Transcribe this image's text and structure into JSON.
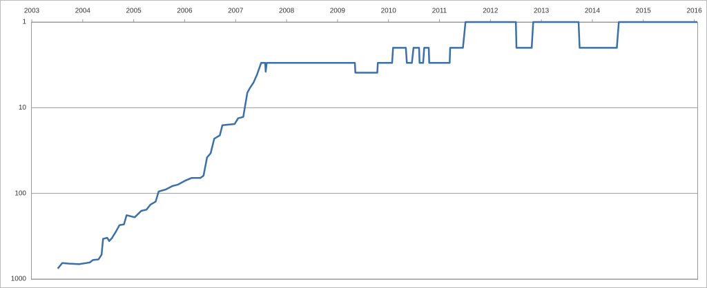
{
  "chart_data": {
    "type": "line",
    "y_scale": "log",
    "y_inverted": true,
    "grid": true,
    "xlim": [
      2003,
      2016.06
    ],
    "xticks": [
      2003,
      2004,
      2005,
      2006,
      2007,
      2008,
      2009,
      2010,
      2011,
      2012,
      2013,
      2014,
      2015,
      2016
    ],
    "ylim": [
      1,
      1000
    ],
    "yticks": [
      1,
      10,
      100,
      1000
    ],
    "x": [
      2003.51,
      2003.6,
      2003.73,
      2003.93,
      2004.14,
      2004.2,
      2004.31,
      2004.37,
      2004.4,
      2004.48,
      2004.52,
      2004.57,
      2004.65,
      2004.72,
      2004.81,
      2004.86,
      2005.02,
      2005.15,
      2005.25,
      2005.33,
      2005.43,
      2005.49,
      2005.63,
      2005.76,
      2005.87,
      2006.01,
      2006.14,
      2006.31,
      2006.37,
      2006.44,
      2006.51,
      2006.58,
      2006.69,
      2006.74,
      2006.98,
      2007.05,
      2007.15,
      2007.23,
      2007.28,
      2007.35,
      2007.42,
      2007.5,
      2007.58,
      2007.59,
      2007.61,
      2009.34,
      2009.35,
      2009.78,
      2009.79,
      2010.07,
      2010.09,
      2010.34,
      2010.36,
      2010.46,
      2010.49,
      2010.6,
      2010.61,
      2010.68,
      2010.7,
      2010.79,
      2010.8,
      2011.2,
      2011.21,
      2011.46,
      2011.51,
      2012.5,
      2012.51,
      2012.81,
      2012.84,
      2013.73,
      2013.75,
      2014.48,
      2014.52,
      2016.06
    ],
    "series": [
      {
        "color": "#3a6fa8",
        "values": [
          755,
          650,
          660,
          670,
          640,
          600,
          590,
          520,
          340,
          330,
          360,
          335,
          280,
          235,
          230,
          180,
          190,
          160,
          155,
          135,
          125,
          95,
          90,
          82,
          79,
          71,
          66,
          66,
          62,
          38,
          34,
          23,
          21,
          16,
          15.5,
          13.3,
          12.8,
          6.7,
          5.9,
          5.1,
          4.1,
          3,
          3,
          3.8,
          3,
          3,
          3.9,
          3.9,
          3,
          3,
          2,
          2,
          3,
          3,
          2,
          2,
          3,
          3,
          2,
          2,
          3,
          3,
          2,
          2,
          1,
          1,
          2,
          2,
          1,
          1,
          2,
          2,
          1,
          1
        ]
      }
    ]
  }
}
